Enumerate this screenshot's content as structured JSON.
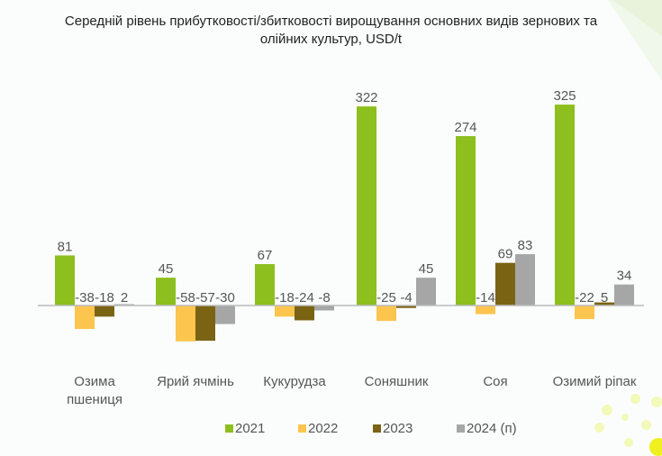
{
  "chart_data": {
    "type": "bar",
    "title_lines": [
      "Середній рівень прибутковості/збитковості вирощування основних видів зернових та",
      "олійних культур, USD/t"
    ],
    "categories": [
      [
        "Озима",
        "пшениця"
      ],
      [
        "Ярий ячмінь"
      ],
      [
        "Кукурудза"
      ],
      [
        "Соняшник"
      ],
      [
        "Соя"
      ],
      [
        "Озимий ріпак"
      ]
    ],
    "series": [
      {
        "name": "2021",
        "color": "#8dbf1e",
        "values": [
          81,
          45,
          67,
          322,
          274,
          325
        ]
      },
      {
        "name": "2022",
        "color": "#fcc54e",
        "values": [
          -38,
          -58,
          -18,
          -25,
          -14,
          -22
        ]
      },
      {
        "name": "2023",
        "color": "#7a6414",
        "values": [
          -18,
          -57,
          -24,
          -4,
          69,
          5
        ]
      },
      {
        "name": "2024 (п)",
        "color": "#a6a6a6",
        "values": [
          2,
          -30,
          -8,
          45,
          83,
          34
        ]
      }
    ],
    "xlabel": "",
    "ylabel": "",
    "grid": false,
    "legend": "bottom",
    "data_labels": true
  }
}
